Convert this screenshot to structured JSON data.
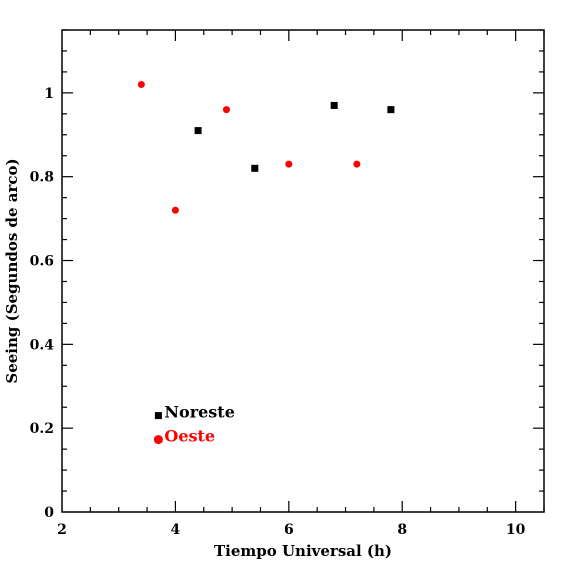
{
  "chart_data": {
    "type": "scatter",
    "title": "",
    "xlabel": "Tiempo Universal (h)",
    "ylabel": "Seeing (Segundos de arco)",
    "xlim": [
      2,
      10.5
    ],
    "ylim": [
      0,
      1.15
    ],
    "xticks": [
      2,
      4,
      6,
      8,
      10
    ],
    "yticks": [
      0,
      0.2,
      0.4,
      0.6,
      0.8,
      1
    ],
    "xtick_labels": [
      "2",
      "4",
      "6",
      "8",
      "10"
    ],
    "ytick_labels": [
      "0",
      "0.2",
      "0.4",
      "0.6",
      "0.8",
      "1"
    ],
    "grid": false,
    "legend_position": "lower-left",
    "series": [
      {
        "name": "Noreste",
        "marker": "square",
        "color": "#000000",
        "points": [
          {
            "x": 4.4,
            "y": 0.91
          },
          {
            "x": 5.4,
            "y": 0.82
          },
          {
            "x": 6.8,
            "y": 0.97
          },
          {
            "x": 7.8,
            "y": 0.96
          }
        ]
      },
      {
        "name": "Oeste",
        "marker": "circle",
        "color": "#ff0000",
        "points": [
          {
            "x": 3.4,
            "y": 1.02
          },
          {
            "x": 4.0,
            "y": 0.72
          },
          {
            "x": 4.9,
            "y": 0.96
          },
          {
            "x": 6.0,
            "y": 0.83
          },
          {
            "x": 7.2,
            "y": 0.83
          }
        ]
      }
    ],
    "legend_anchor": {
      "x": 3.7,
      "y": 0.23
    }
  }
}
